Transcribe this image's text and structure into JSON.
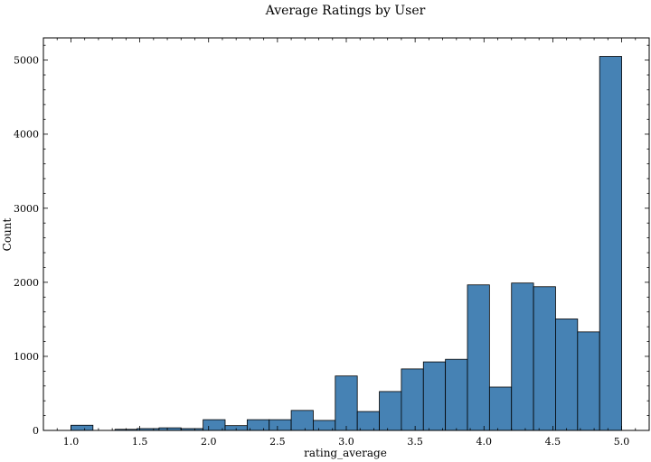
{
  "chart_data": {
    "type": "bar",
    "title": "Average Ratings by User",
    "xlabel": "rating_average",
    "ylabel": "Count",
    "xlim": [
      0.8,
      5.2
    ],
    "ylim": [
      0,
      5300
    ],
    "xticks": [
      "1.0",
      "1.5",
      "2.0",
      "2.5",
      "3.0",
      "3.5",
      "4.0",
      "4.5",
      "5.0"
    ],
    "yticks": [
      "0",
      "1000",
      "2000",
      "3000",
      "4000",
      "5000"
    ],
    "bin_width": 0.16,
    "bins": [
      {
        "start": 1.0,
        "end": 1.16,
        "count": 70
      },
      {
        "start": 1.16,
        "end": 1.32,
        "count": 0
      },
      {
        "start": 1.32,
        "end": 1.48,
        "count": 15
      },
      {
        "start": 1.48,
        "end": 1.64,
        "count": 25
      },
      {
        "start": 1.64,
        "end": 1.8,
        "count": 35
      },
      {
        "start": 1.8,
        "end": 1.96,
        "count": 25
      },
      {
        "start": 1.96,
        "end": 2.12,
        "count": 145
      },
      {
        "start": 2.12,
        "end": 2.28,
        "count": 65
      },
      {
        "start": 2.28,
        "end": 2.44,
        "count": 145
      },
      {
        "start": 2.44,
        "end": 2.6,
        "count": 145
      },
      {
        "start": 2.6,
        "end": 2.76,
        "count": 270
      },
      {
        "start": 2.76,
        "end": 2.92,
        "count": 135
      },
      {
        "start": 2.92,
        "end": 3.08,
        "count": 735
      },
      {
        "start": 3.08,
        "end": 3.24,
        "count": 255
      },
      {
        "start": 3.24,
        "end": 3.4,
        "count": 525
      },
      {
        "start": 3.4,
        "end": 3.56,
        "count": 830
      },
      {
        "start": 3.56,
        "end": 3.72,
        "count": 925
      },
      {
        "start": 3.72,
        "end": 3.88,
        "count": 960
      },
      {
        "start": 3.88,
        "end": 4.04,
        "count": 1965
      },
      {
        "start": 4.04,
        "end": 4.2,
        "count": 585
      },
      {
        "start": 4.2,
        "end": 4.36,
        "count": 1990
      },
      {
        "start": 4.36,
        "end": 4.52,
        "count": 1940
      },
      {
        "start": 4.52,
        "end": 4.68,
        "count": 1505
      },
      {
        "start": 4.68,
        "end": 4.84,
        "count": 1330
      },
      {
        "start": 4.84,
        "end": 5.0,
        "count": 5050
      }
    ],
    "bar_color": "#4682b4",
    "edge_color": "#000000",
    "grid": false,
    "legend": "none"
  }
}
